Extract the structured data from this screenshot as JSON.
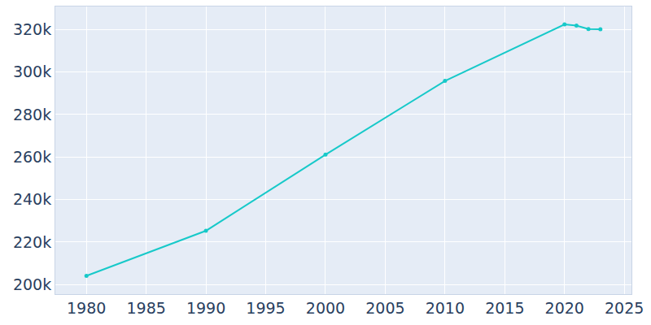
{
  "chart_data": {
    "type": "line",
    "x": [
      1980,
      1990,
      2000,
      2010,
      2020,
      2021,
      2022,
      2023
    ],
    "values": [
      204100,
      225300,
      261100,
      295800,
      322400,
      321800,
      320200,
      320100
    ],
    "color": "#17c9c9",
    "marker": "circle",
    "xlim": [
      1977.4,
      2025.6
    ],
    "xticks": [
      1980,
      1985,
      1990,
      1995,
      2000,
      2005,
      2010,
      2015,
      2020,
      2025
    ],
    "ylim": [
      195500,
      330800
    ],
    "yticks": [
      {
        "value": 200000,
        "label": "200k"
      },
      {
        "value": 220000,
        "label": "220k"
      },
      {
        "value": 240000,
        "label": "240k"
      },
      {
        "value": 260000,
        "label": "260k"
      },
      {
        "value": 280000,
        "label": "280k"
      },
      {
        "value": 300000,
        "label": "300k"
      },
      {
        "value": 320000,
        "label": "320k"
      }
    ],
    "grid": true
  }
}
